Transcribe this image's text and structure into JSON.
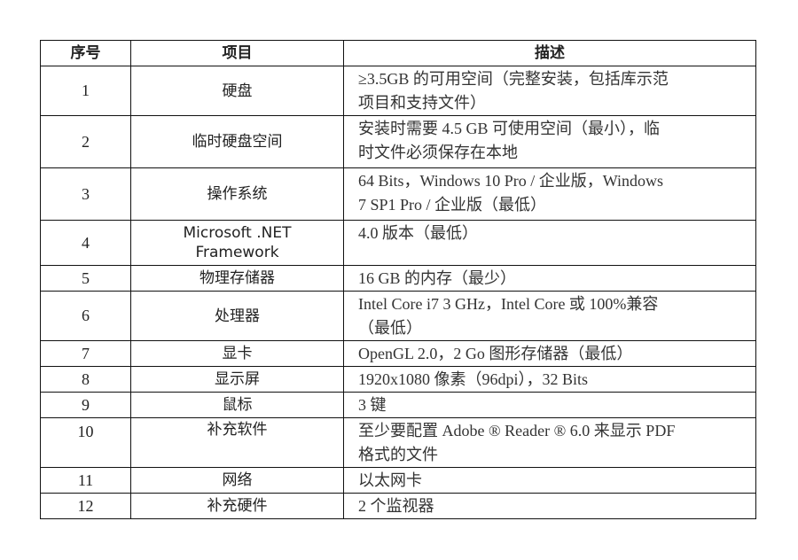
{
  "table": {
    "headers": [
      "序号",
      "项目",
      "描述"
    ],
    "rows": [
      {
        "num": "1",
        "item": [
          "硬盘"
        ],
        "desc": [
          "≥3.5GB 的可用空间（完整安装，包括库示范",
          "项目和支持文件）"
        ]
      },
      {
        "num": "2",
        "item": [
          "临时硬盘空间"
        ],
        "desc": [
          "安装时需要 4.5 GB 可使用空间（最小），临",
          "时文件必须保存在本地"
        ]
      },
      {
        "num": "3",
        "item": [
          "操作系统"
        ],
        "desc": [
          "64 Bits，Windows 10 Pro / 企业版，Windows",
          "7 SP1 Pro / 企业版（最低）"
        ]
      },
      {
        "num": "4",
        "item": [
          "Microsoft .NET",
          "Framework"
        ],
        "desc": [
          "4.0 版本（最低）"
        ]
      },
      {
        "num": "5",
        "item": [
          "物理存储器"
        ],
        "desc": [
          "16 GB 的内存（最少）"
        ]
      },
      {
        "num": "6",
        "item": [
          "处理器"
        ],
        "desc": [
          "Intel Core i7 3 GHz，Intel Core 或 100%兼容",
          "（最低）"
        ]
      },
      {
        "num": "7",
        "item": [
          "显卡"
        ],
        "desc": [
          "OpenGL 2.0，2 Go 图形存储器（最低）"
        ]
      },
      {
        "num": "8",
        "item": [
          "显示屏"
        ],
        "desc": [
          "1920x1080 像素（96dpi），32 Bits"
        ]
      },
      {
        "num": "9",
        "item": [
          "鼠标"
        ],
        "desc": [
          "3 键"
        ]
      },
      {
        "num": "10",
        "item": [
          "补充软件"
        ],
        "desc": [
          "至少要配置 Adobe ® Reader ® 6.0 来显示 PDF",
          "格式的文件"
        ]
      },
      {
        "num": "11",
        "item": [
          "网络"
        ],
        "desc": [
          "以太网卡"
        ]
      },
      {
        "num": "12",
        "item": [
          "补充硬件"
        ],
        "desc": [
          "2 个监视器"
        ]
      }
    ]
  }
}
